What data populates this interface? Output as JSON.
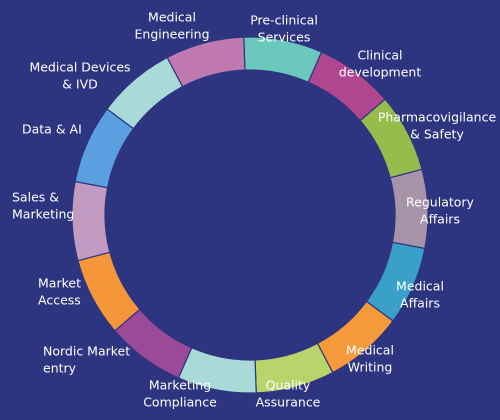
{
  "segments": [
    {
      "lines": [
        "Pre-clinical",
        "Services"
      ],
      "color": "#6cc8bc"
    },
    {
      "lines": [
        "Clinical",
        "development"
      ],
      "color": "#b0468f"
    },
    {
      "lines": [
        "Pharmacovigilance",
        "& Safety"
      ],
      "color": "#96bd4c"
    },
    {
      "lines": [
        "Regulatory",
        "Affairs"
      ],
      "color": "#a894a8"
    },
    {
      "lines": [
        "Medical",
        "Affairs"
      ],
      "color": "#3aa0c8"
    },
    {
      "lines": [
        "Medical",
        "Writing"
      ],
      "color": "#f59a3a"
    },
    {
      "lines": [
        "Quality",
        "Assurance"
      ],
      "color": "#b8d46a"
    },
    {
      "lines": [
        "Marketing",
        "Compliance"
      ],
      "color": "#a9dad8"
    },
    {
      "lines": [
        "Nordic Market",
        "entry"
      ],
      "color": "#9a4a96"
    },
    {
      "lines": [
        "Market",
        "Access"
      ],
      "color": "#f5963a"
    },
    {
      "lines": [
        "Sales &",
        "Marketing"
      ],
      "color": "#c49bc0"
    },
    {
      "lines": [
        "Data & AI"
      ],
      "color": "#5aa0e0"
    },
    {
      "lines": [
        "Medical Devices",
        "& IVD"
      ],
      "color": "#a9dad8"
    },
    {
      "lines": [
        "Medical",
        "Engineering"
      ],
      "color": "#c07ab0"
    }
  ]
}
